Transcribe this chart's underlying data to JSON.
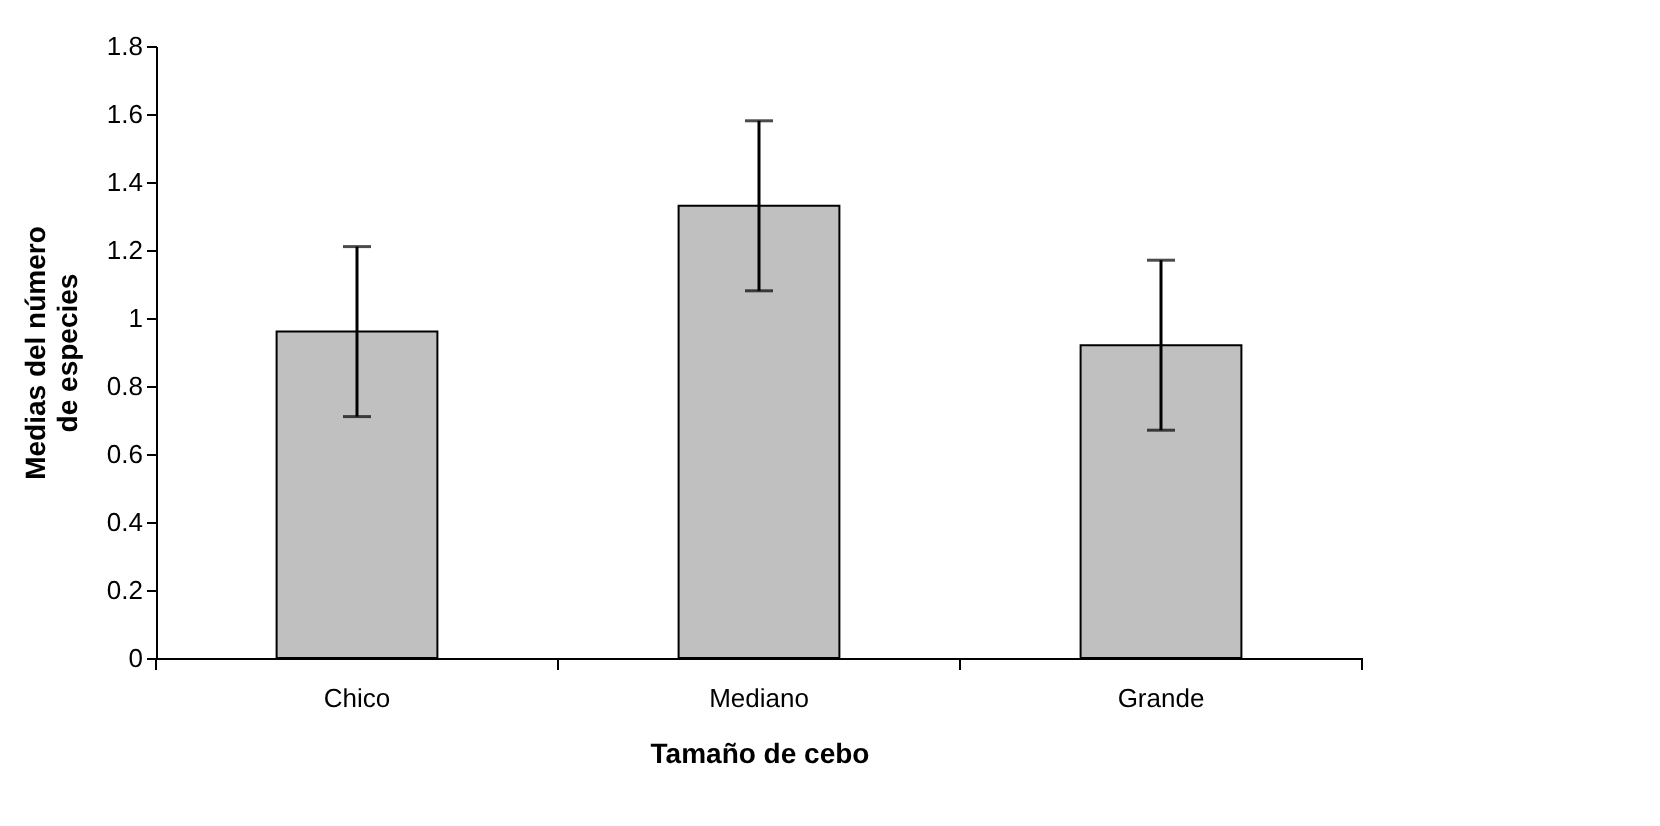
{
  "chart_data": {
    "type": "bar",
    "xlabel": "Tamaño de cebo",
    "ylabel": "Medias del número de especies",
    "categories": [
      "Chico",
      "Mediano",
      "Grande"
    ],
    "values": [
      0.96,
      1.33,
      0.92
    ],
    "errors": [
      0.25,
      0.25,
      0.25
    ],
    "color": "#c0c0c0",
    "ylim": [
      0,
      1.8
    ],
    "yticks": [
      0,
      0.2,
      0.4,
      0.6,
      0.8,
      1,
      1.2,
      1.4,
      1.6,
      1.8
    ],
    "grid": false
  }
}
